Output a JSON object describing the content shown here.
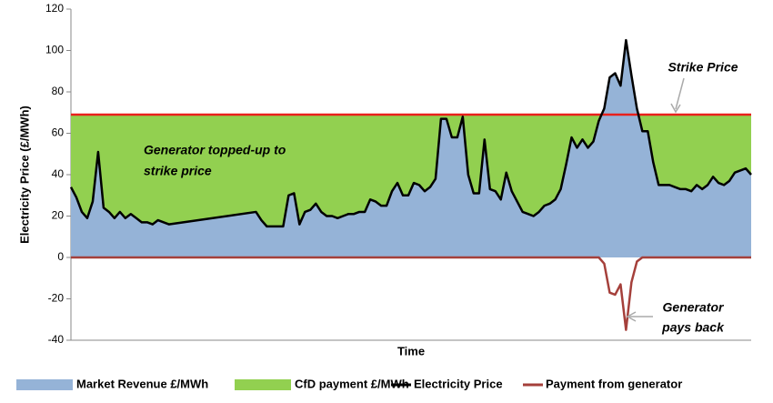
{
  "chart_data": {
    "type": "area",
    "y_label": "Electricity Price (£/MWh)",
    "x_label": "Time",
    "xlim": [
      0,
      125
    ],
    "ylim": [
      -40,
      120
    ],
    "yticks": [
      -40,
      -20,
      0,
      20,
      40,
      60,
      80,
      100,
      120
    ],
    "x": [
      0,
      1,
      2,
      3,
      4,
      5,
      6,
      7,
      8,
      9,
      10,
      11,
      12,
      13,
      14,
      15,
      16,
      17,
      18,
      34,
      35,
      36,
      37,
      38,
      39,
      40,
      41,
      42,
      43,
      44,
      45,
      46,
      47,
      48,
      49,
      50,
      51,
      52,
      53,
      54,
      55,
      56,
      57,
      58,
      59,
      60,
      61,
      62,
      63,
      64,
      65,
      66,
      67,
      68,
      69,
      70,
      71,
      72,
      73,
      74,
      75,
      76,
      77,
      78,
      79,
      80,
      81,
      82,
      83,
      84,
      85,
      86,
      87,
      88,
      89,
      90,
      91,
      92,
      93,
      94,
      95,
      96,
      97,
      98,
      99,
      100,
      101,
      102,
      103,
      104,
      105,
      106,
      107,
      108,
      109,
      110,
      111,
      112,
      113,
      114,
      115,
      116,
      117,
      118,
      119,
      120,
      121,
      122,
      123,
      124,
      125
    ],
    "strike_price": {
      "value": 69,
      "label": "Strike Price",
      "color": "#e8201c"
    },
    "annotations": [
      [
        "Generator topped-up to",
        "strike price"
      ],
      [
        "Generator",
        "pays back"
      ]
    ],
    "series": [
      {
        "name": "Market Revenue £/MWh",
        "color": "#95b3d7",
        "style": "area",
        "values": [
          34,
          29,
          22,
          19,
          27,
          51,
          24,
          22,
          19,
          22,
          19,
          21,
          19,
          17,
          17,
          16,
          18,
          17,
          16,
          22,
          18,
          15,
          15,
          15,
          15,
          30,
          31,
          16,
          22,
          23,
          26,
          22,
          20,
          20,
          19,
          20,
          21,
          21,
          22,
          22,
          28,
          27,
          25,
          25,
          32,
          36,
          30,
          30,
          36,
          35,
          32,
          34,
          38,
          67,
          67,
          58,
          58,
          68,
          40,
          31,
          31,
          57,
          33,
          32,
          28,
          41,
          32,
          27,
          22,
          21,
          20,
          22,
          25,
          26,
          28,
          33,
          45,
          58,
          53,
          57,
          53,
          56,
          66,
          72,
          87,
          89,
          83,
          105,
          88,
          72,
          61,
          61,
          46,
          35,
          35,
          35,
          34,
          33,
          33,
          32,
          35,
          33,
          35,
          39,
          36,
          35,
          37,
          41,
          42,
          43,
          40
        ]
      },
      {
        "name": "CfD payment £/MWh",
        "color": "#92d050",
        "style": "band"
      },
      {
        "name": "Electricity Price",
        "color": "#000000",
        "style": "line",
        "values": [
          34,
          29,
          22,
          19,
          27,
          51,
          24,
          22,
          19,
          22,
          19,
          21,
          19,
          17,
          17,
          16,
          18,
          17,
          16,
          22,
          18,
          15,
          15,
          15,
          15,
          30,
          31,
          16,
          22,
          23,
          26,
          22,
          20,
          20,
          19,
          20,
          21,
          21,
          22,
          22,
          28,
          27,
          25,
          25,
          32,
          36,
          30,
          30,
          36,
          35,
          32,
          34,
          38,
          67,
          67,
          58,
          58,
          68,
          40,
          31,
          31,
          57,
          33,
          32,
          28,
          41,
          32,
          27,
          22,
          21,
          20,
          22,
          25,
          26,
          28,
          33,
          45,
          58,
          53,
          57,
          53,
          56,
          66,
          72,
          87,
          89,
          83,
          105,
          88,
          72,
          61,
          61,
          46,
          35,
          35,
          35,
          34,
          33,
          33,
          32,
          35,
          33,
          35,
          39,
          36,
          35,
          37,
          41,
          42,
          43,
          40
        ]
      },
      {
        "name": "Payment from generator",
        "color": "#a5403b",
        "style": "line",
        "values": [
          0,
          0,
          0,
          0,
          0,
          0,
          0,
          0,
          0,
          0,
          0,
          0,
          0,
          0,
          0,
          0,
          0,
          0,
          0,
          0,
          0,
          0,
          0,
          0,
          0,
          0,
          0,
          0,
          0,
          0,
          0,
          0,
          0,
          0,
          0,
          0,
          0,
          0,
          0,
          0,
          0,
          0,
          0,
          0,
          0,
          0,
          0,
          0,
          0,
          0,
          0,
          0,
          0,
          0,
          0,
          0,
          0,
          0,
          0,
          0,
          0,
          0,
          0,
          0,
          0,
          0,
          0,
          0,
          0,
          0,
          0,
          0,
          0,
          0,
          0,
          0,
          0,
          0,
          0,
          0,
          0,
          0,
          0,
          -3,
          -17,
          -18,
          -13,
          -35,
          -12,
          -2,
          0,
          0,
          0,
          0,
          0,
          0,
          0,
          0,
          0,
          0,
          0,
          0,
          0,
          0,
          0,
          0,
          0,
          0,
          0,
          0,
          0
        ]
      }
    ]
  }
}
